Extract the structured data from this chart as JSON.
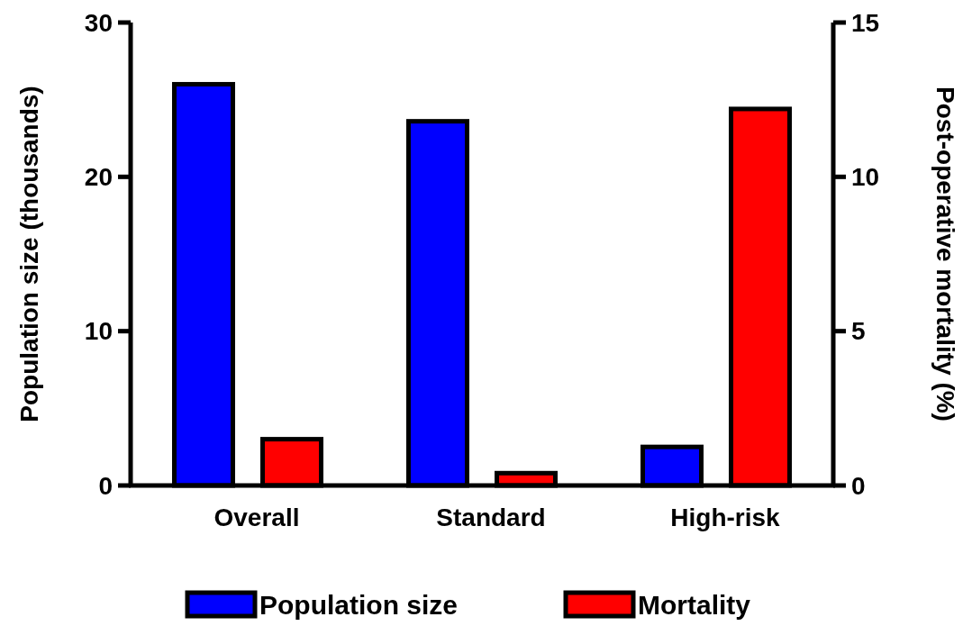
{
  "chart_data": {
    "type": "bar",
    "categories": [
      "Overall",
      "Standard",
      "High-risk"
    ],
    "series": [
      {
        "name": "Population size",
        "color": "#0000ff",
        "values": [
          26,
          23.6,
          2.5
        ]
      },
      {
        "name": "Mortality",
        "color": "#ff0000",
        "values": [
          1.5,
          0.4,
          12.2
        ],
        "axis": "y2"
      }
    ],
    "ylabel": "Population size (thousands)",
    "y2label": "Post-operative mortality (%)",
    "ylim": [
      0,
      30
    ],
    "yticks": [
      0,
      10,
      20,
      30
    ],
    "y2lim": [
      0,
      15
    ],
    "y2ticks": [
      0,
      5,
      10,
      15
    ],
    "grid": false,
    "legend": "bottom"
  }
}
